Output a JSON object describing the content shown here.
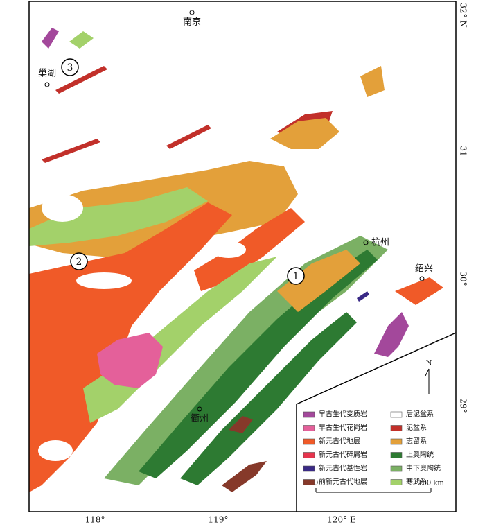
{
  "map": {
    "cities": [
      "南京",
      "巢湖",
      "杭州",
      "绍兴",
      "衢州"
    ],
    "zones": [
      "1",
      "2",
      "3"
    ],
    "lon_labels": [
      "118°",
      "119°",
      "120° E"
    ],
    "lat_labels": [
      "32° N",
      "31",
      "30°",
      "29°"
    ]
  },
  "legend": {
    "items": [
      {
        "label": "早古生代变质岩",
        "color": "#a3489b"
      },
      {
        "label": "早古生代花岗岩",
        "color": "#e4609a"
      },
      {
        "label": "新元古代地层",
        "color": "#f05a28"
      },
      {
        "label": "新元古代碎屑岩",
        "color": "#e6344d"
      },
      {
        "label": "新元古代基性岩",
        "color": "#3a2a86"
      },
      {
        "label": "前新元古代地层",
        "color": "#86392a"
      },
      {
        "label": "后泥盆系",
        "color": "#ffffff"
      },
      {
        "label": "泥盆系",
        "color": "#c2302a"
      },
      {
        "label": "志留系",
        "color": "#e3a03a"
      },
      {
        "label": "上奥陶统",
        "color": "#2d7a32"
      },
      {
        "label": "中下奥陶统",
        "color": "#7bb064"
      },
      {
        "label": "寒武系",
        "color": "#a3d16a"
      }
    ]
  },
  "scale": {
    "start": "0",
    "end": "100 km"
  },
  "north": "N"
}
